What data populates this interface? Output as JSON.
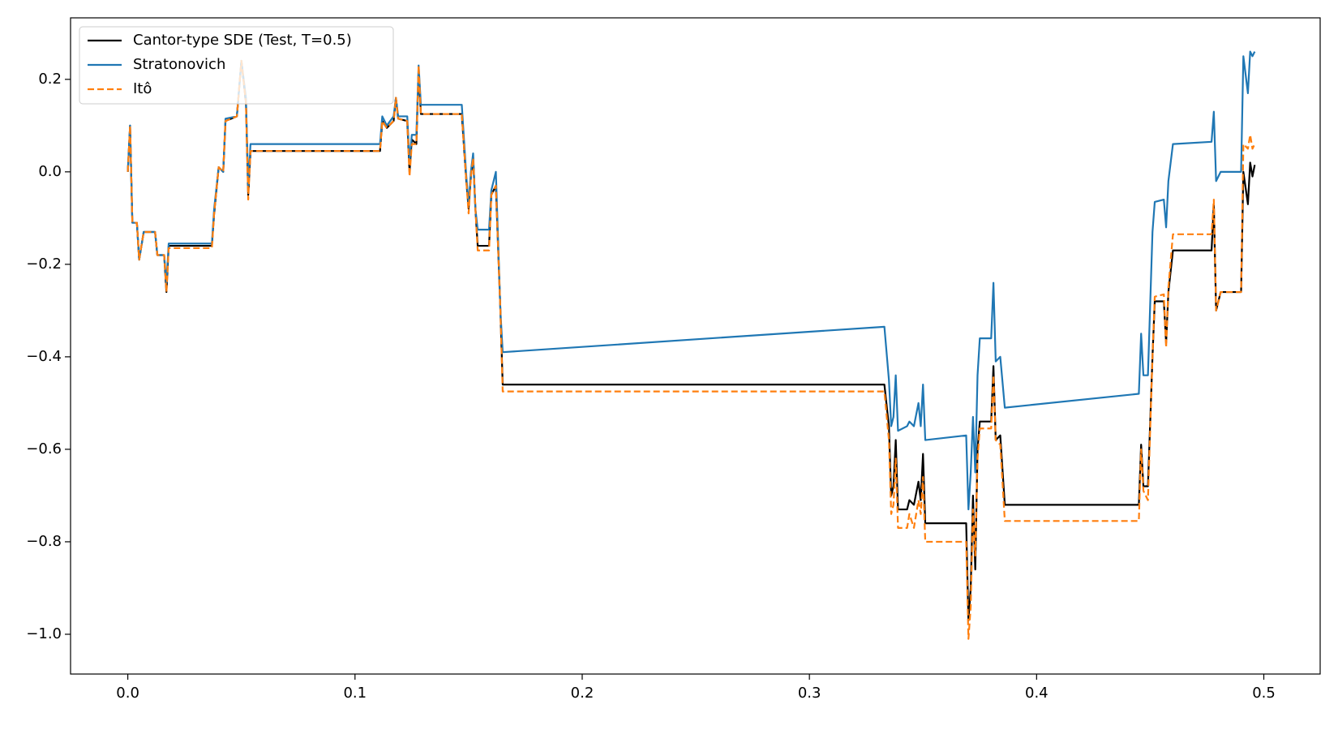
{
  "chart_data": {
    "type": "line",
    "x": [
      0.0,
      0.001,
      0.002,
      0.004,
      0.005,
      0.007,
      0.012,
      0.013,
      0.016,
      0.017,
      0.018,
      0.037,
      0.038,
      0.04,
      0.042,
      0.043,
      0.048,
      0.05,
      0.052,
      0.053,
      0.054,
      0.111,
      0.112,
      0.114,
      0.117,
      0.118,
      0.119,
      0.123,
      0.124,
      0.125,
      0.127,
      0.128,
      0.129,
      0.147,
      0.149,
      0.15,
      0.151,
      0.152,
      0.153,
      0.154,
      0.159,
      0.16,
      0.162,
      0.164,
      0.165,
      0.333,
      0.335,
      0.336,
      0.337,
      0.338,
      0.339,
      0.343,
      0.344,
      0.346,
      0.348,
      0.349,
      0.35,
      0.351,
      0.369,
      0.37,
      0.371,
      0.372,
      0.373,
      0.374,
      0.375,
      0.38,
      0.381,
      0.382,
      0.384,
      0.386,
      0.445,
      0.446,
      0.447,
      0.449,
      0.451,
      0.452,
      0.456,
      0.457,
      0.458,
      0.46,
      0.477,
      0.478,
      0.479,
      0.481,
      0.49,
      0.491,
      0.493,
      0.494,
      0.495,
      0.496
    ],
    "series": [
      {
        "name": "Cantor-type SDE (Test, T=0.5)",
        "color": "#000000",
        "dash": false,
        "values": [
          0,
          0.1,
          -0.11,
          -0.11,
          -0.19,
          -0.13,
          -0.13,
          -0.18,
          -0.18,
          -0.26,
          -0.16,
          -0.16,
          -0.09,
          0.01,
          0,
          0.11,
          0.12,
          0.24,
          0.15,
          -0.05,
          0.045,
          0.045,
          0.11,
          0.095,
          0.11,
          0.16,
          0.115,
          0.11,
          0,
          0.07,
          0.06,
          0.22,
          0.125,
          0.125,
          -0.02,
          -0.08,
          -0.01,
          0.03,
          -0.08,
          -0.16,
          -0.16,
          -0.05,
          -0.03,
          -0.3,
          -0.46,
          -0.46,
          -0.55,
          -0.7,
          -0.68,
          -0.58,
          -0.73,
          -0.73,
          -0.71,
          -0.72,
          -0.67,
          -0.71,
          -0.61,
          -0.76,
          -0.76,
          -0.97,
          -0.9,
          -0.7,
          -0.86,
          -0.6,
          -0.54,
          -0.54,
          -0.42,
          -0.58,
          -0.57,
          -0.72,
          -0.72,
          -0.59,
          -0.68,
          -0.68,
          -0.4,
          -0.28,
          -0.28,
          -0.37,
          -0.26,
          -0.17,
          -0.17,
          -0.07,
          -0.3,
          -0.26,
          -0.26,
          0,
          -0.07,
          0.02,
          -0.01,
          0.015
        ]
      },
      {
        "name": "Stratonovich",
        "color": "#1f77b4",
        "dash": false,
        "values": [
          0,
          0.1,
          -0.11,
          -0.11,
          -0.19,
          -0.13,
          -0.13,
          -0.18,
          -0.18,
          -0.24,
          -0.155,
          -0.155,
          -0.08,
          0.01,
          0,
          0.115,
          0.12,
          0.24,
          0.16,
          -0.03,
          0.06,
          0.06,
          0.12,
          0.1,
          0.12,
          0.16,
          0.12,
          0.12,
          0.02,
          0.08,
          0.08,
          0.23,
          0.145,
          0.145,
          -0.01,
          -0.07,
          0,
          0.04,
          -0.08,
          -0.125,
          -0.125,
          -0.04,
          0,
          -0.3,
          -0.39,
          -0.335,
          -0.45,
          -0.55,
          -0.53,
          -0.44,
          -0.56,
          -0.55,
          -0.54,
          -0.55,
          -0.5,
          -0.55,
          -0.46,
          -0.58,
          -0.57,
          -0.73,
          -0.65,
          -0.53,
          -0.65,
          -0.44,
          -0.36,
          -0.36,
          -0.24,
          -0.41,
          -0.4,
          -0.51,
          -0.48,
          -0.35,
          -0.44,
          -0.44,
          -0.13,
          -0.065,
          -0.06,
          -0.12,
          -0.02,
          0.06,
          0.065,
          0.13,
          -0.02,
          0,
          0,
          0.25,
          0.17,
          0.26,
          0.25,
          0.26
        ]
      },
      {
        "name": "Itô",
        "color": "#ff7f0e",
        "dash": true,
        "values": [
          0,
          0.1,
          -0.11,
          -0.11,
          -0.19,
          -0.13,
          -0.13,
          -0.18,
          -0.18,
          -0.26,
          -0.165,
          -0.165,
          -0.09,
          0.01,
          0,
          0.11,
          0.12,
          0.24,
          0.15,
          -0.06,
          0.045,
          0.045,
          0.11,
          0.095,
          0.11,
          0.16,
          0.115,
          0.11,
          -0.01,
          0.06,
          0.06,
          0.23,
          0.125,
          0.125,
          -0.02,
          -0.09,
          -0.01,
          0.03,
          -0.08,
          -0.17,
          -0.17,
          -0.05,
          -0.03,
          -0.3,
          -0.475,
          -0.475,
          -0.58,
          -0.74,
          -0.72,
          -0.62,
          -0.77,
          -0.77,
          -0.74,
          -0.77,
          -0.71,
          -0.74,
          -0.66,
          -0.8,
          -0.8,
          -1.01,
          -0.94,
          -0.73,
          -0.83,
          -0.62,
          -0.555,
          -0.555,
          -0.44,
          -0.58,
          -0.59,
          -0.755,
          -0.755,
          -0.6,
          -0.69,
          -0.71,
          -0.4,
          -0.27,
          -0.265,
          -0.38,
          -0.25,
          -0.135,
          -0.135,
          -0.06,
          -0.3,
          -0.26,
          -0.26,
          0.06,
          0.05,
          0.08,
          0.05,
          0.06
        ]
      }
    ],
    "xlim": [
      -0.0252,
      0.5248
    ],
    "ylim": [
      -1.086,
      0.333
    ],
    "xticks": [
      {
        "value": 0,
        "label": "0.0"
      },
      0.1,
      0.2,
      0.3,
      0.4,
      0.5
    ],
    "yticks": [
      {
        "value": -1.0,
        "label": "−1.0"
      },
      {
        "value": -0.8,
        "label": "−0.8"
      },
      {
        "value": -0.6,
        "label": "−0.6"
      },
      {
        "value": -0.4,
        "label": "−0.4"
      },
      {
        "value": -0.2,
        "label": "−0.2"
      },
      {
        "value": 0,
        "label": "0.0"
      },
      0.2
    ],
    "legend": "upper left"
  }
}
